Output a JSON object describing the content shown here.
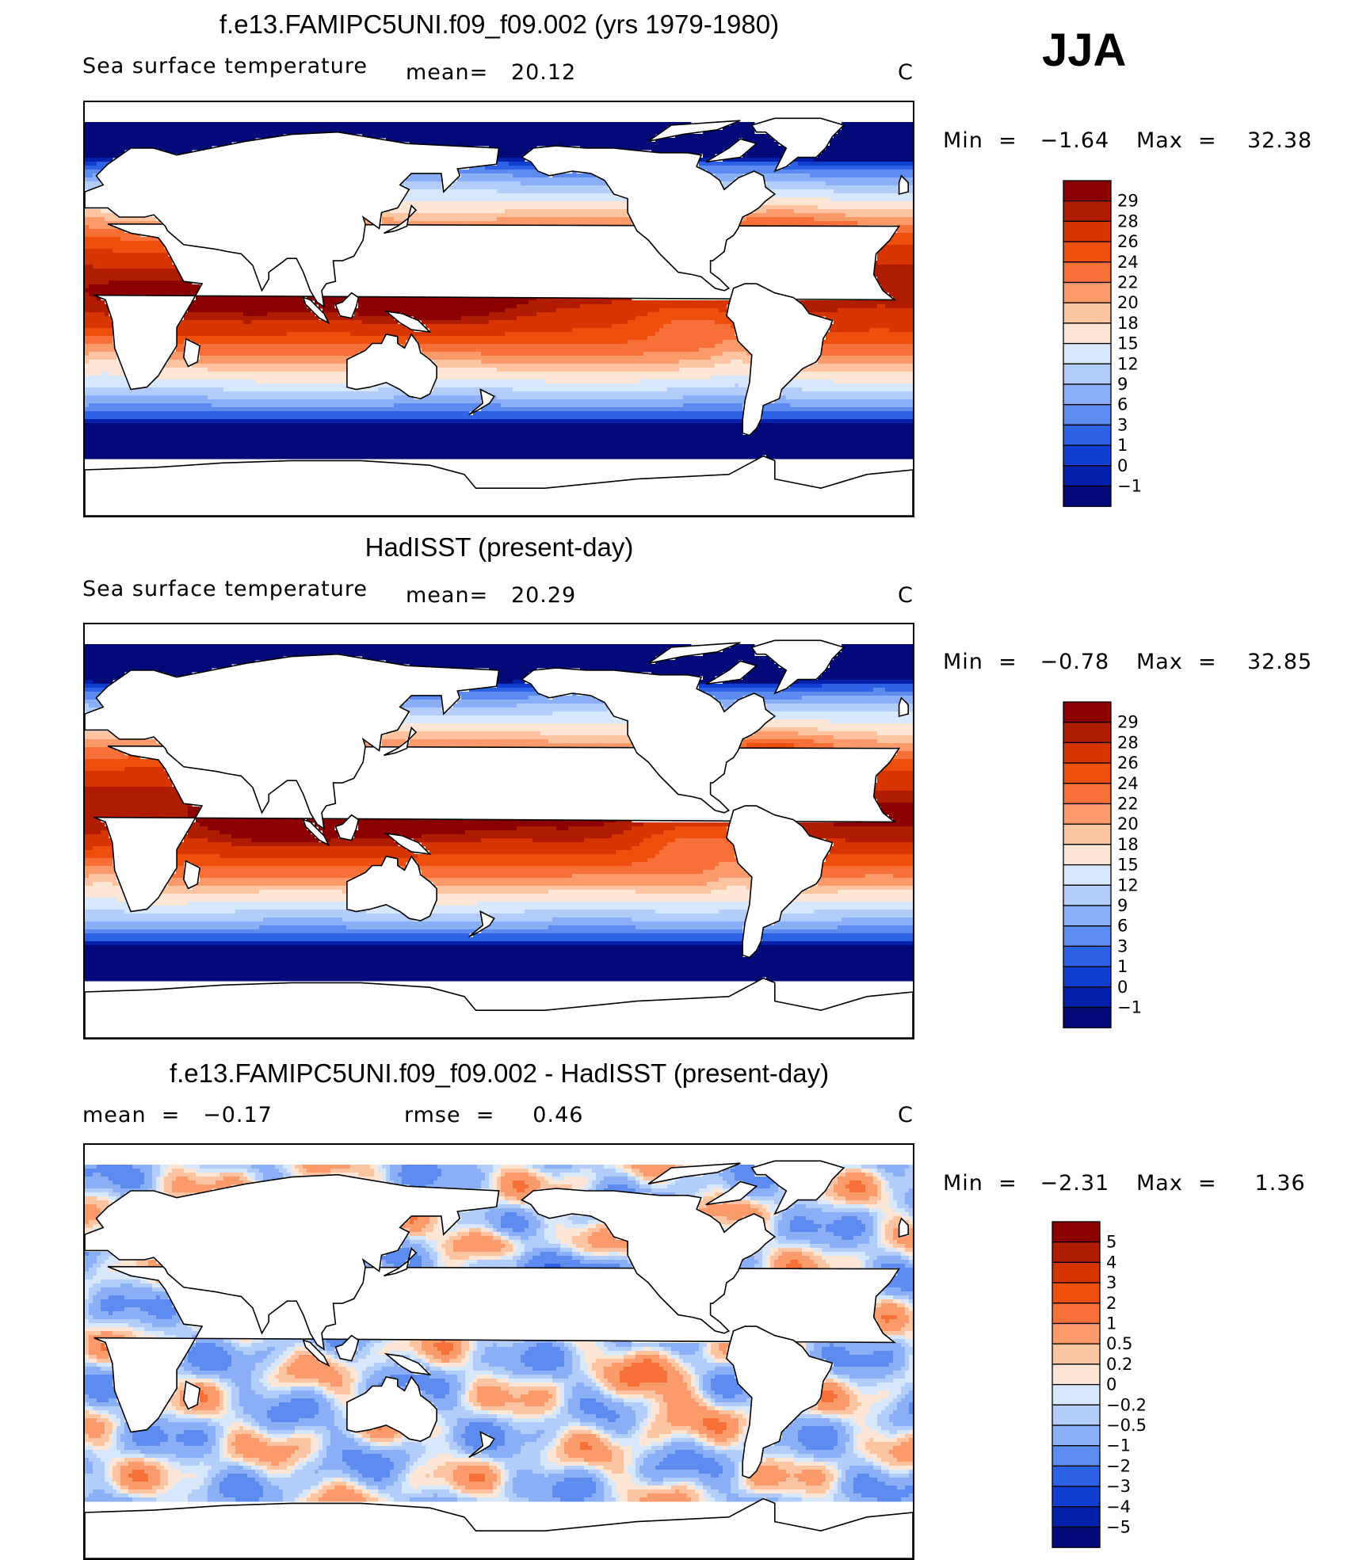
{
  "season": "JJA",
  "panels": [
    {
      "title": "f.e13.FAMIPC5UNI.f09_f09.002 (yrs 1979-1980)",
      "variable": "Sea surface temperature",
      "stat1": "mean=   20.12",
      "stat2": "",
      "units": "C",
      "minmax_min": "Min  =   −1.64",
      "minmax_max": "Max  =    32.38",
      "colorbar_labels": [
        "29",
        "28",
        "26",
        "24",
        "22",
        "20",
        "18",
        "15",
        "12",
        "9",
        "6",
        "3",
        "1",
        "0",
        "−1"
      ],
      "colorbar_colors": [
        "#8b0000",
        "#b01c00",
        "#d63500",
        "#ee4f0c",
        "#f77038",
        "#fb9a6a",
        "#fdc4a2",
        "#fde6d6",
        "#d8e8fc",
        "#b3cdfb",
        "#8aaff7",
        "#5d8cf0",
        "#2e62e6",
        "#0e3fd1",
        "#0320aa",
        "#010a78"
      ],
      "field": "sst"
    },
    {
      "title": "HadISST (present-day)",
      "variable": "Sea surface temperature",
      "stat1": "mean=   20.29",
      "stat2": "",
      "units": "C",
      "minmax_min": "Min  =   −0.78",
      "minmax_max": "Max  =    32.85",
      "colorbar_labels": [
        "29",
        "28",
        "26",
        "24",
        "22",
        "20",
        "18",
        "15",
        "12",
        "9",
        "6",
        "3",
        "1",
        "0",
        "−1"
      ],
      "colorbar_colors": [
        "#8b0000",
        "#b01c00",
        "#d63500",
        "#ee4f0c",
        "#f77038",
        "#fb9a6a",
        "#fdc4a2",
        "#fde6d6",
        "#d8e8fc",
        "#b3cdfb",
        "#8aaff7",
        "#5d8cf0",
        "#2e62e6",
        "#0e3fd1",
        "#0320aa",
        "#010a78"
      ],
      "field": "sst"
    },
    {
      "title": "f.e13.FAMIPC5UNI.f09_f09.002 - HadISST (present-day)",
      "variable": "mean  =   −0.17",
      "stat1": "rmse  =     0.46",
      "stat2": "",
      "units": "C",
      "minmax_min": "Min  =   −2.31",
      "minmax_max": "Max  =     1.36",
      "colorbar_labels": [
        "5",
        "4",
        "3",
        "2",
        "1",
        "0.5",
        "0.2",
        "0",
        "−0.2",
        "−0.5",
        "−1",
        "−2",
        "−3",
        "−4",
        "−5"
      ],
      "colorbar_colors": [
        "#8b0000",
        "#b01c00",
        "#d63500",
        "#ee4f0c",
        "#f77038",
        "#fb9a6a",
        "#fdc4a2",
        "#fde6d6",
        "#d8e8fc",
        "#b3cdfb",
        "#8aaff7",
        "#5d8cf0",
        "#2e62e6",
        "#0e3fd1",
        "#0320aa",
        "#010a78"
      ],
      "field": "diff"
    }
  ]
}
